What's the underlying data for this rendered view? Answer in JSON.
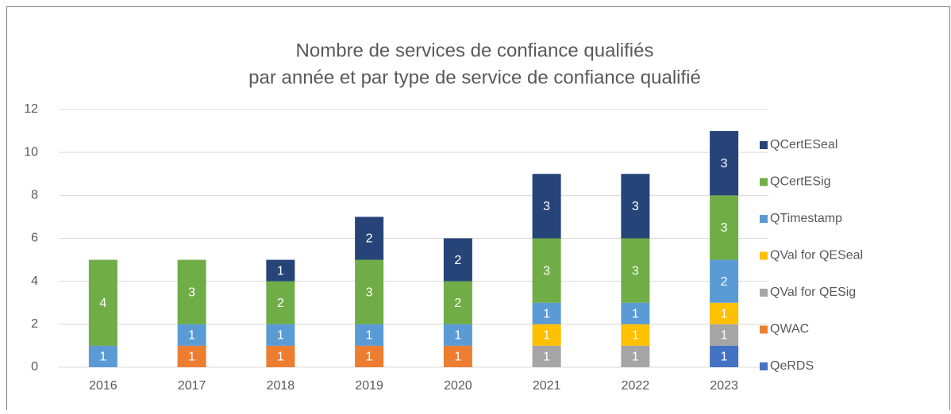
{
  "chart_data": {
    "type": "stacked_bar",
    "title": [
      "Nombre de services de confiance qualifiés",
      "par année et par type de service de confiance qualifié"
    ],
    "categories": [
      "2016",
      "2017",
      "2018",
      "2019",
      "2020",
      "2021",
      "2022",
      "2023"
    ],
    "series": [
      {
        "name": "QeRDS",
        "color": "#4472c4",
        "values": [
          null,
          null,
          null,
          null,
          null,
          null,
          null,
          1
        ]
      },
      {
        "name": "QWAC",
        "color": "#ed7d31",
        "values": [
          null,
          1,
          1,
          1,
          1,
          null,
          null,
          null
        ]
      },
      {
        "name": "QVal for QESig",
        "color": "#a5a5a5",
        "values": [
          null,
          null,
          null,
          null,
          null,
          1,
          1,
          1
        ]
      },
      {
        "name": "QVal for QESeal",
        "color": "#ffc000",
        "values": [
          null,
          null,
          null,
          null,
          null,
          1,
          1,
          1
        ]
      },
      {
        "name": "QTimestamp",
        "color": "#5b9bd5",
        "values": [
          1,
          1,
          1,
          1,
          1,
          1,
          1,
          2
        ]
      },
      {
        "name": "QCertESig",
        "color": "#70ad47",
        "values": [
          4,
          3,
          2,
          3,
          2,
          3,
          3,
          3
        ]
      },
      {
        "name": "QCertESeal",
        "color": "#264478",
        "values": [
          null,
          null,
          1,
          2,
          2,
          3,
          3,
          3
        ]
      }
    ],
    "ylim": [
      0,
      12
    ],
    "yticks": [
      0,
      2,
      4,
      6,
      8,
      10,
      12
    ],
    "grid": true,
    "legend": "right"
  }
}
